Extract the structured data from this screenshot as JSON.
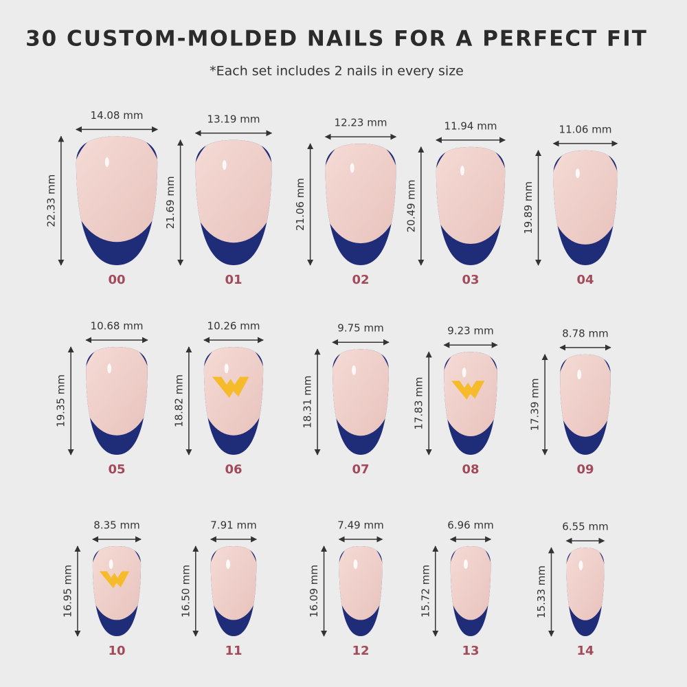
{
  "header": {
    "title": "30 CUSTOM-MOLDED NAILS FOR A PERFECT FIT",
    "subtitle": "*Each set includes 2 nails in every size"
  },
  "nails": [
    {
      "size": "00",
      "width": "14.08 mm",
      "height": "22.33 mm",
      "logo": false
    },
    {
      "size": "01",
      "width": "13.19 mm",
      "height": "21.69 mm",
      "logo": false
    },
    {
      "size": "02",
      "width": "12.23 mm",
      "height": "21.06 mm",
      "logo": false
    },
    {
      "size": "03",
      "width": "11.94 mm",
      "height": "20.49 mm",
      "logo": false
    },
    {
      "size": "04",
      "width": "11.06 mm",
      "height": "19.89 mm",
      "logo": false
    },
    {
      "size": "05",
      "width": "10.68 mm",
      "height": "19.35 mm",
      "logo": false
    },
    {
      "size": "06",
      "width": "10.26 mm",
      "height": "18.82 mm",
      "logo": true
    },
    {
      "size": "07",
      "width": "9.75 mm",
      "height": "18.31 mm",
      "logo": false
    },
    {
      "size": "08",
      "width": "9.23 mm",
      "height": "17.83 mm",
      "logo": true
    },
    {
      "size": "09",
      "width": "8.78 mm",
      "height": "17.39 mm",
      "logo": false
    },
    {
      "size": "10",
      "width": "8.35 mm",
      "height": "16.95 mm",
      "logo": true
    },
    {
      "size": "11",
      "width": "7.91 mm",
      "height": "16.50 mm",
      "logo": false
    },
    {
      "size": "12",
      "width": "7.49 mm",
      "height": "16.09 mm",
      "logo": false
    },
    {
      "size": "13",
      "width": "6.96 mm",
      "height": "15.72 mm",
      "logo": false
    },
    {
      "size": "14",
      "width": "6.55 mm",
      "height": "15.33 mm",
      "logo": false
    }
  ]
}
